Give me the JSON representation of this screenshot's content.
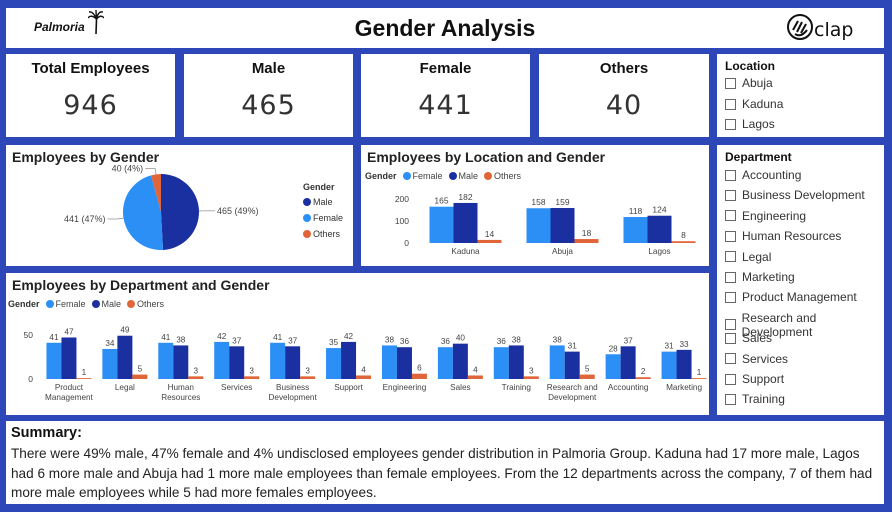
{
  "header": {
    "logo_text": "Palmoria",
    "title": "Gender Analysis",
    "logo_right_text": "clap"
  },
  "kpis": [
    {
      "label": "Total Employees",
      "value": "946"
    },
    {
      "label": "Male",
      "value": "465"
    },
    {
      "label": "Female",
      "value": "441"
    },
    {
      "label": "Others",
      "value": "40"
    }
  ],
  "colors": {
    "female": "#2b8ff5",
    "male": "#1a2fa0",
    "others": "#e0663a",
    "frame": "#2e47b8"
  },
  "location_slicer": {
    "title": "Location",
    "items": [
      "Abuja",
      "Kaduna",
      "Lagos"
    ]
  },
  "department_slicer": {
    "title": "Department",
    "items": [
      "Accounting",
      "Business Development",
      "Engineering",
      "Human Resources",
      "Legal",
      "Marketing",
      "Product Management",
      "Research and Development",
      "Sales",
      "Services",
      "Support",
      "Training"
    ]
  },
  "summary": {
    "title": "Summary:",
    "text": "There were 49% male, 47% female and 4% undisclosed employees gender distribution in Palmoria Group. Kaduna had 17 more male, Lagos had 6 more male and Abuja had 1 more male employees than female employees. From the 12 departments across the company, 7 of them had more male employees while 5 had more females employees."
  },
  "chart_data": [
    {
      "type": "pie",
      "title": "Employees by Gender",
      "legend_title": "Gender",
      "legend_position": "right",
      "slices": [
        {
          "name": "Male",
          "value": 465,
          "label": "465 (49%)"
        },
        {
          "name": "Female",
          "value": 441,
          "label": "441 (47%)"
        },
        {
          "name": "Others",
          "value": 40,
          "label": "40 (4%)"
        }
      ]
    },
    {
      "type": "bar",
      "title": "Employees by Location and Gender",
      "legend_title": "Gender",
      "legend_position": "top-left",
      "categories": [
        "Kaduna",
        "Abuja",
        "Lagos"
      ],
      "series": [
        {
          "name": "Female",
          "values": [
            165,
            158,
            118
          ]
        },
        {
          "name": "Male",
          "values": [
            182,
            159,
            124
          ]
        },
        {
          "name": "Others",
          "values": [
            14,
            18,
            8
          ]
        }
      ],
      "ylim": [
        0,
        200
      ],
      "yticks": [
        0,
        100,
        200
      ],
      "grid": false
    },
    {
      "type": "bar",
      "title": "Employees by Department and Gender",
      "legend_title": "Gender",
      "legend_position": "top-left",
      "categories": [
        "Product\nManagement",
        "Legal",
        "Human\nResources",
        "Services",
        "Business\nDevelopment",
        "Support",
        "Engineering",
        "Sales",
        "Training",
        "Research and\nDevelopment",
        "Accounting",
        "Marketing"
      ],
      "series": [
        {
          "name": "Female",
          "values": [
            41,
            34,
            41,
            42,
            41,
            35,
            38,
            36,
            36,
            38,
            28,
            31
          ]
        },
        {
          "name": "Male",
          "values": [
            47,
            49,
            38,
            37,
            37,
            42,
            36,
            40,
            38,
            31,
            37,
            33
          ]
        },
        {
          "name": "Others",
          "values": [
            1,
            5,
            3,
            3,
            3,
            4,
            6,
            4,
            3,
            5,
            2,
            1
          ]
        }
      ],
      "ylim": [
        0,
        60
      ],
      "yticks": [
        0,
        50
      ],
      "grid": false
    }
  ]
}
